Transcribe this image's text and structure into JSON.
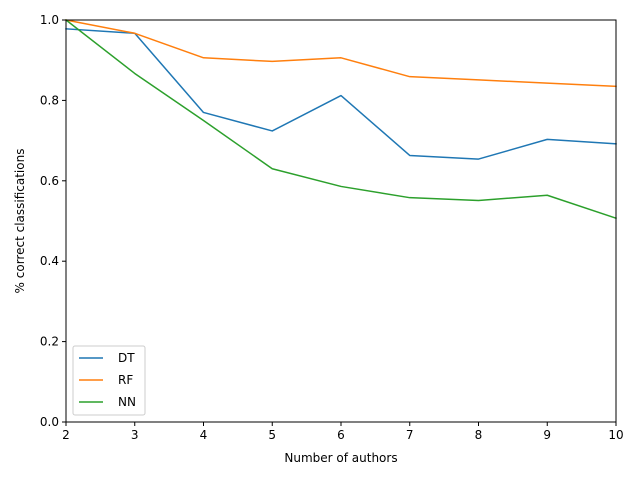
{
  "chart_data": {
    "type": "line",
    "title": "",
    "xlabel": "Number of authors",
    "ylabel": "% correct classifications",
    "x": [
      2,
      3,
      4,
      5,
      6,
      7,
      8,
      9,
      10
    ],
    "xlim": [
      2,
      10
    ],
    "ylim": [
      0,
      1.0
    ],
    "x_ticks": [
      "2",
      "3",
      "4",
      "5",
      "6",
      "7",
      "8",
      "9",
      "10"
    ],
    "y_ticks": [
      "0.0",
      "0.2",
      "0.4",
      "0.6",
      "0.8",
      "1.0"
    ],
    "grid": false,
    "legend_position": "lower-left",
    "series": [
      {
        "name": "DT",
        "color": "#1f77b4",
        "values": [
          0.978,
          0.967,
          0.77,
          0.724,
          0.812,
          0.663,
          0.654,
          0.703,
          0.692
        ]
      },
      {
        "name": "RF",
        "color": "#ff7f0e",
        "values": [
          1.0,
          0.967,
          0.906,
          0.897,
          0.906,
          0.859,
          0.851,
          0.843,
          0.835
        ]
      },
      {
        "name": "NN",
        "color": "#2ca02c",
        "values": [
          1.0,
          0.867,
          0.75,
          0.63,
          0.586,
          0.558,
          0.551,
          0.564,
          0.507
        ]
      }
    ]
  }
}
